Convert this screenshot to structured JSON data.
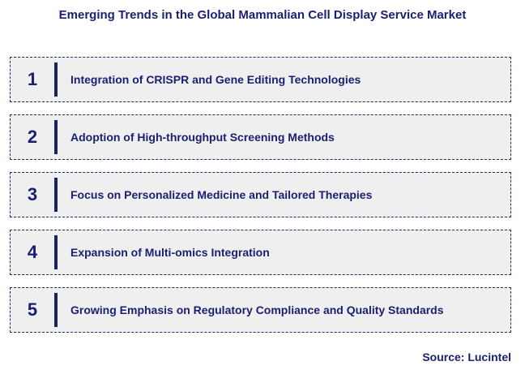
{
  "title": "Emerging Trends in the Global Mammalian Cell Display Service Market",
  "trends": [
    {
      "number": "1",
      "label": "Integration of CRISPR and Gene Editing Technologies"
    },
    {
      "number": "2",
      "label": "Adoption of High-throughput Screening Methods"
    },
    {
      "number": "3",
      "label": "Focus on Personalized Medicine and Tailored Therapies"
    },
    {
      "number": "4",
      "label": "Expansion of Multi-omics Integration"
    },
    {
      "number": "5",
      "label": "Growing Emphasis on Regulatory Compliance and Quality Standards"
    }
  ],
  "source": "Source: Lucintel",
  "colors": {
    "navy_text": "#1a1f71",
    "bar": "#13265f",
    "border": "#1c2d6b",
    "row_bg": "#efefef",
    "page_bg": "#ffffff"
  }
}
